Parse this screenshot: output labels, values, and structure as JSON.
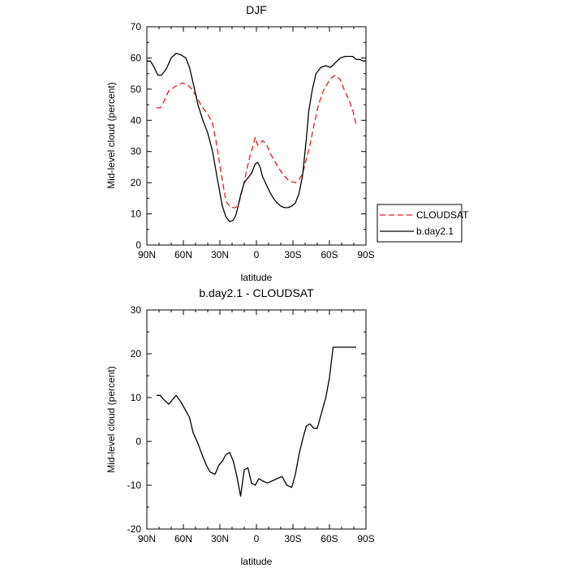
{
  "chart_data": [
    {
      "type": "line",
      "title": "DJF",
      "xlabel": "latitude",
      "ylabel": "Mid-level cloud (percent)",
      "xlim": [
        -90,
        90
      ],
      "ylim": [
        0,
        70
      ],
      "x_ticks": [
        {
          "value": -90,
          "label": "90N"
        },
        {
          "value": -60,
          "label": "60N"
        },
        {
          "value": -30,
          "label": "30N"
        },
        {
          "value": 0,
          "label": "0"
        },
        {
          "value": 30,
          "label": "30S"
        },
        {
          "value": 60,
          "label": "60S"
        },
        {
          "value": 90,
          "label": "90S"
        }
      ],
      "y_ticks": [
        0,
        10,
        20,
        30,
        40,
        50,
        60,
        70
      ],
      "legend": {
        "placement": "right",
        "entries": [
          "CLOUDSAT",
          "b.day2.1"
        ]
      },
      "series": [
        {
          "name": "CLOUDSAT",
          "color": "#e41a1c",
          "dash": "dashed",
          "x": [
            -82,
            -79,
            -76,
            -72,
            -66,
            -61,
            -57,
            -53,
            -49,
            -45,
            -40,
            -36,
            -33,
            -29,
            -25,
            -21,
            -17,
            -14,
            -11,
            -8,
            -5,
            -3,
            -1,
            1,
            3,
            5,
            8,
            12,
            17,
            22,
            27,
            32,
            35,
            38,
            41,
            44,
            47,
            51,
            55,
            58,
            61,
            65,
            69,
            72,
            76,
            79,
            82
          ],
          "y": [
            44,
            44,
            46,
            49.5,
            51,
            52,
            51.5,
            50,
            47.5,
            44.5,
            42,
            39,
            33,
            23,
            14,
            12,
            12,
            14,
            18.5,
            24,
            29,
            31.5,
            34.5,
            32,
            32.5,
            33.5,
            32.5,
            29,
            25.5,
            22.5,
            20.5,
            20,
            21,
            23,
            27.5,
            32,
            38,
            45,
            49.5,
            51.5,
            53.5,
            54.5,
            53,
            50,
            46.5,
            43.5,
            38.5
          ]
        },
        {
          "name": "b.day2.1",
          "color": "#000000",
          "dash": "solid",
          "x": [
            -90,
            -87,
            -84,
            -81,
            -78,
            -74,
            -70,
            -66,
            -62,
            -58,
            -55,
            -52,
            -48,
            -44,
            -40,
            -36,
            -32,
            -28,
            -25,
            -22,
            -19,
            -17,
            -15,
            -13,
            -10,
            -7,
            -4,
            -1,
            1,
            3,
            5,
            8,
            11,
            14,
            17,
            20,
            23,
            26,
            29,
            32,
            35,
            38,
            41,
            43,
            46,
            49,
            53,
            57,
            61,
            65,
            69,
            73,
            76,
            79,
            82,
            85,
            88,
            90
          ],
          "y": [
            59,
            59,
            57,
            54.5,
            54.5,
            56.5,
            60,
            61.5,
            61,
            60,
            57,
            52,
            45,
            40,
            36,
            30,
            21,
            12.5,
            9,
            7.5,
            8,
            9.5,
            12.5,
            16,
            20,
            21.5,
            23,
            26,
            26.5,
            25,
            22,
            19.5,
            17,
            15,
            13.5,
            12.5,
            12,
            12,
            12.5,
            13.5,
            16.5,
            22.5,
            34,
            43,
            50,
            55,
            57,
            57.5,
            57,
            58.5,
            60,
            60.5,
            60.5,
            60.5,
            59.5,
            59.5,
            59,
            59
          ]
        }
      ]
    },
    {
      "type": "line",
      "title": "b.day2.1 - CLOUDSAT",
      "xlabel": "latitude",
      "ylabel": "Mid-level cloud (percent)",
      "xlim": [
        -90,
        90
      ],
      "ylim": [
        -20,
        30
      ],
      "x_ticks": [
        {
          "value": -90,
          "label": "90N"
        },
        {
          "value": -60,
          "label": "60N"
        },
        {
          "value": -30,
          "label": "30N"
        },
        {
          "value": 0,
          "label": "0"
        },
        {
          "value": 30,
          "label": "30S"
        },
        {
          "value": 60,
          "label": "60S"
        },
        {
          "value": 90,
          "label": "90S"
        }
      ],
      "y_ticks": [
        -20,
        -10,
        0,
        10,
        20,
        30
      ],
      "series": [
        {
          "name": "",
          "color": "#000000",
          "dash": "solid",
          "x": [
            -82,
            -79,
            -76,
            -72,
            -69,
            -66,
            -62,
            -59,
            -55,
            -52,
            -48,
            -44,
            -41,
            -38,
            -34,
            -31,
            -28,
            -25,
            -22,
            -19,
            -16,
            -13,
            -10,
            -7,
            -4,
            -1,
            2,
            5,
            9,
            13,
            17,
            21,
            25,
            29,
            32,
            35,
            38,
            41,
            44,
            47,
            50,
            54,
            57,
            60,
            63,
            65,
            69,
            72,
            76,
            79,
            82
          ],
          "y": [
            10.5,
            10.5,
            9.5,
            8.5,
            9.5,
            10.5,
            9,
            7.5,
            5.5,
            2,
            -0.5,
            -3.5,
            -5.5,
            -7,
            -7.5,
            -5.5,
            -4.5,
            -3,
            -2.5,
            -4.5,
            -8,
            -12.5,
            -6.5,
            -6,
            -9.5,
            -10,
            -8.5,
            -9,
            -9.5,
            -9,
            -8.5,
            -8,
            -10,
            -10.5,
            -7.5,
            -3,
            0.5,
            3.5,
            4,
            3,
            3,
            7,
            10,
            14.5,
            21.5,
            21.5,
            21.5,
            21.5,
            21.5,
            21.5,
            21.5
          ]
        }
      ]
    }
  ]
}
